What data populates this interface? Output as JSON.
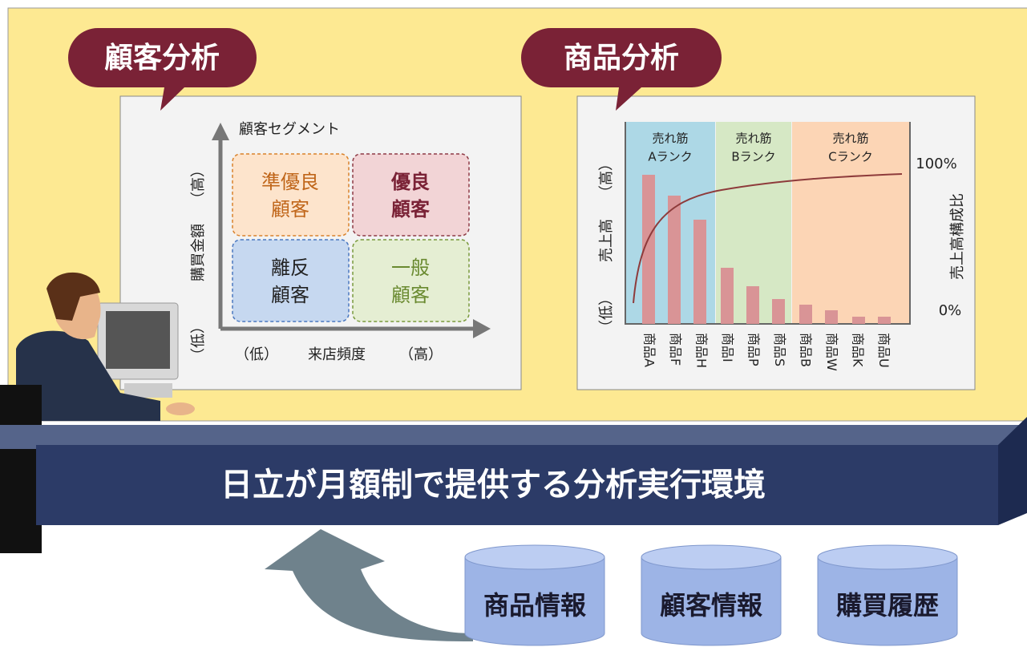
{
  "customer_analysis": {
    "tag": "顧客分析",
    "chart_title": "顧客セグメント",
    "y_axis": {
      "high": "（高）",
      "label": "購買金額",
      "low": "（低）"
    },
    "x_axis": {
      "low": "（低）",
      "label": "来店頻度",
      "high": "（高）"
    },
    "segments": [
      {
        "line1": "準優良",
        "line2": "顧客"
      },
      {
        "line1": "優良",
        "line2": "顧客"
      },
      {
        "line1": "離反",
        "line2": "顧客"
      },
      {
        "line1": "一般",
        "line2": "顧客"
      }
    ]
  },
  "product_analysis": {
    "tag": "商品分析",
    "bands": [
      {
        "title": "売れ筋",
        "rank": "Aランク"
      },
      {
        "title": "売れ筋",
        "rank": "Bランク"
      },
      {
        "title": "売れ筋",
        "rank": "Cランク"
      }
    ],
    "y_axis": {
      "high": "（高）",
      "label": "売上高",
      "low": "（低）"
    },
    "y2_axis": {
      "top": "100%",
      "bottom": "0%",
      "label": "売上高構成比"
    },
    "products": [
      "商品A",
      "商品F",
      "商品H",
      "商品I",
      "商品P",
      "商品S",
      "商品B",
      "商品W",
      "商品K",
      "商品U"
    ]
  },
  "platform": "日立が月額制で提供する分析実行環境",
  "sources": [
    "商品情報",
    "顧客情報",
    "購買履歴"
  ]
}
